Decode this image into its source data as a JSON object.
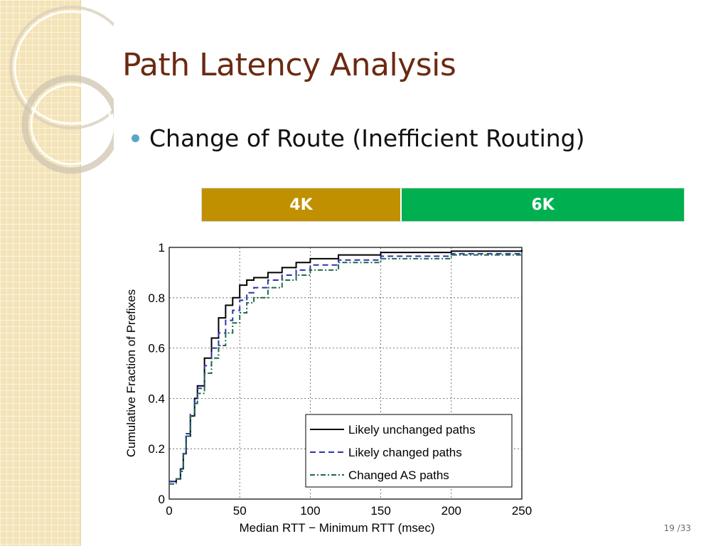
{
  "slide": {
    "title": "Path Latency Analysis",
    "bullet": "Change of Route (Inefficient Routing)",
    "page_number": "19 /33"
  },
  "comparison_bar": {
    "left_label": "4K",
    "right_label": "6K",
    "left_color": "#c09000",
    "right_color": "#00b050"
  },
  "chart_data": {
    "type": "line",
    "xlabel": "Median RTT − Minimum RTT (msec)",
    "ylabel": "Cumulative Fraction of Prefixes",
    "xlim": [
      0,
      250
    ],
    "ylim": [
      0,
      1
    ],
    "xticks": [
      "0",
      "50",
      "100",
      "150",
      "200",
      "250"
    ],
    "yticks": [
      "0",
      "0.2",
      "0.4",
      "0.6",
      "0.8",
      "1"
    ],
    "grid": true,
    "legend_position": "bottom-right",
    "series": [
      {
        "name": "Likely unchanged paths",
        "style": "solid",
        "color": "#000000",
        "x": [
          0,
          5,
          8,
          10,
          12,
          15,
          18,
          20,
          25,
          30,
          35,
          40,
          45,
          50,
          55,
          60,
          70,
          80,
          90,
          100,
          120,
          150,
          200,
          250
        ],
        "y": [
          0.07,
          0.08,
          0.12,
          0.18,
          0.25,
          0.33,
          0.4,
          0.45,
          0.56,
          0.64,
          0.72,
          0.77,
          0.8,
          0.85,
          0.87,
          0.88,
          0.9,
          0.92,
          0.94,
          0.955,
          0.97,
          0.98,
          0.985,
          0.99
        ]
      },
      {
        "name": "Likely changed paths",
        "style": "dashed",
        "color": "#2b35a8",
        "x": [
          0,
          5,
          8,
          10,
          12,
          15,
          18,
          20,
          25,
          30,
          35,
          40,
          45,
          50,
          55,
          60,
          70,
          80,
          90,
          100,
          120,
          150,
          200,
          250
        ],
        "y": [
          0.07,
          0.08,
          0.12,
          0.19,
          0.26,
          0.34,
          0.4,
          0.44,
          0.53,
          0.6,
          0.66,
          0.71,
          0.75,
          0.79,
          0.82,
          0.84,
          0.87,
          0.89,
          0.91,
          0.93,
          0.95,
          0.965,
          0.975,
          0.98
        ]
      },
      {
        "name": "Changed AS paths",
        "style": "dashdot",
        "color": "#1f6b4a",
        "x": [
          0,
          5,
          8,
          10,
          12,
          15,
          18,
          20,
          25,
          30,
          35,
          40,
          45,
          50,
          55,
          60,
          70,
          80,
          90,
          100,
          120,
          150,
          200,
          250
        ],
        "y": [
          0.06,
          0.08,
          0.11,
          0.18,
          0.25,
          0.33,
          0.38,
          0.42,
          0.5,
          0.56,
          0.61,
          0.66,
          0.7,
          0.74,
          0.78,
          0.8,
          0.84,
          0.87,
          0.89,
          0.91,
          0.94,
          0.955,
          0.97,
          0.975
        ]
      }
    ]
  }
}
